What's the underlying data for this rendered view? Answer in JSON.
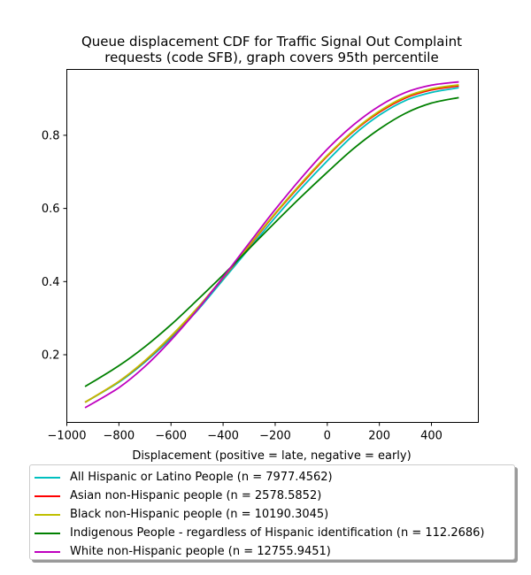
{
  "chart_data": {
    "type": "line",
    "title": "Queue displacement CDF for Traffic Signal Out Complaint requests (code SFB), graph covers 95th percentile",
    "title_lines": [
      "Queue displacement CDF for Traffic Signal Out Complaint",
      "requests (code SFB), graph covers 95th percentile"
    ],
    "xlabel": "Displacement (positive = late, negative = early)",
    "ylabel": "",
    "xlim": [
      -1000,
      580
    ],
    "ylim": [
      0.015,
      0.98
    ],
    "xticks": [
      -1000,
      -800,
      -600,
      -400,
      -200,
      0,
      200,
      400
    ],
    "xtick_labels": [
      "−1000",
      "−800",
      "−600",
      "−400",
      "−200",
      "0",
      "200",
      "400"
    ],
    "yticks": [
      0.2,
      0.4,
      0.6,
      0.8
    ],
    "ytick_labels": [
      "0.2",
      "0.4",
      "0.6",
      "0.8"
    ],
    "grid": false,
    "legend_placement": "below",
    "x": [
      -930,
      -800,
      -700,
      -600,
      -500,
      -400,
      -300,
      -200,
      -100,
      0,
      100,
      200,
      300,
      400,
      505
    ],
    "series": [
      {
        "name": "All Hispanic or Latino People (n = 7977.4562)",
        "color": "#00bfbf",
        "values": [
          0.07,
          0.125,
          0.18,
          0.245,
          0.32,
          0.405,
          0.49,
          0.575,
          0.655,
          0.73,
          0.8,
          0.855,
          0.895,
          0.917,
          0.93
        ]
      },
      {
        "name": "Asian non-Hispanic people (n = 2578.5852)",
        "color": "#ff0000",
        "values": [
          0.07,
          0.127,
          0.183,
          0.25,
          0.326,
          0.41,
          0.497,
          0.585,
          0.666,
          0.743,
          0.81,
          0.863,
          0.902,
          0.924,
          0.935
        ]
      },
      {
        "name": "Black non-Hispanic people (n = 10190.3045)",
        "color": "#bfbf00",
        "values": [
          0.07,
          0.127,
          0.184,
          0.251,
          0.327,
          0.411,
          0.499,
          0.587,
          0.669,
          0.745,
          0.812,
          0.866,
          0.905,
          0.927,
          0.938
        ]
      },
      {
        "name": "Indigenous People - regardless of Hispanic identification (n = 112.2686)",
        "color": "#008000",
        "values": [
          0.113,
          0.17,
          0.222,
          0.282,
          0.349,
          0.418,
          0.49,
          0.562,
          0.632,
          0.699,
          0.763,
          0.817,
          0.86,
          0.888,
          0.903
        ]
      },
      {
        "name": "White non-Hispanic people (n = 12755.9451)",
        "color": "#bf00bf",
        "values": [
          0.055,
          0.11,
          0.168,
          0.24,
          0.322,
          0.412,
          0.505,
          0.597,
          0.683,
          0.762,
          0.828,
          0.88,
          0.917,
          0.937,
          0.946
        ]
      }
    ]
  }
}
